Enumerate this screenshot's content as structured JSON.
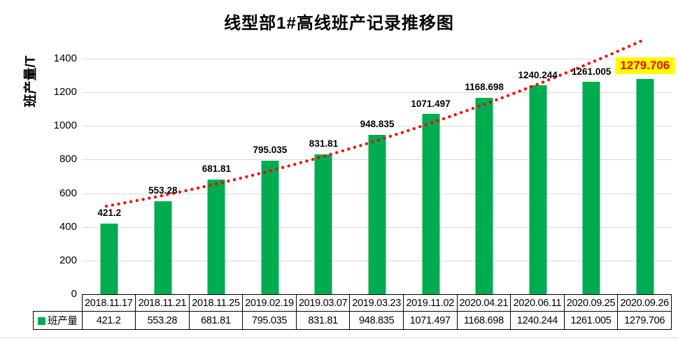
{
  "title": "线型部1#高线班产记录推移图",
  "y_axis_title": "班产量/T",
  "legend_label": "班产量",
  "colors": {
    "bar": "#00AC50",
    "trendline": "#FF0000",
    "highlight_bg": "#FFFF00",
    "highlight_text": "#FF0000",
    "gridline": "#D9D9D9",
    "table_border": "#000000"
  },
  "chart_data": {
    "type": "bar",
    "title": "线型部1#高线班产记录推移图",
    "ylabel": "班产量/T",
    "xlabel": "",
    "ylim": [
      0,
      1400
    ],
    "y_ticks": [
      0,
      200,
      400,
      600,
      800,
      1000,
      1200,
      1400
    ],
    "grid": true,
    "legend_position": "data-table-left",
    "categories": [
      "2018.11.17",
      "2018.11.21",
      "2018.11.25",
      "2019.02.19",
      "2019.03.07",
      "2019.03.23",
      "2019.11.02",
      "2020.04.21",
      "2020.06.11",
      "2020.09.25",
      "2020.09.26"
    ],
    "series": [
      {
        "name": "班产量",
        "values": [
          421.2,
          553.28,
          681.81,
          795.035,
          831.81,
          948.835,
          1071.497,
          1168.698,
          1240.244,
          1261.005,
          1279.706
        ]
      }
    ],
    "data_labels": [
      "421.2",
      "553.28",
      "681.81",
      "795.035",
      "831.81",
      "948.835",
      "1071.497",
      "1168.698",
      "1240.244",
      "1261.005",
      "1279.706"
    ],
    "trendline": {
      "style": "dotted",
      "color": "#FF0000"
    },
    "highlighted_point": {
      "index": 10,
      "label": "1279.706",
      "bg": "#FFFF00",
      "text_color": "#FF0000"
    }
  }
}
